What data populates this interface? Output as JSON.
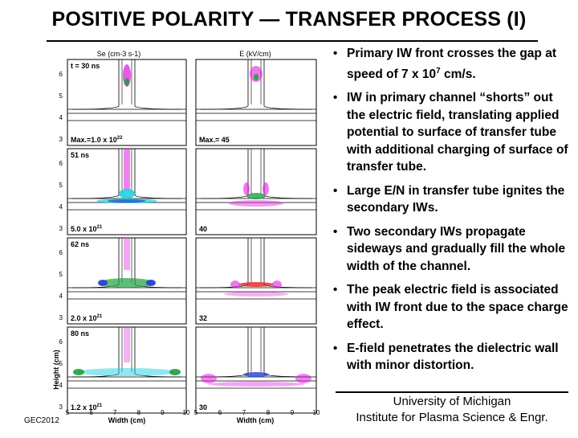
{
  "title": "POSITIVE POLARITY — TRANSFER PROCESS (I)",
  "figure": {
    "col_left_header": "Se (cm-3 s-1)",
    "col_right_header": "E (kV/cm)",
    "y_axis_label": "Height (cm)",
    "x_axis_label": "Width (cm)",
    "y_ticks": [
      "6",
      "5",
      "4",
      "3"
    ],
    "x_ticks": [
      "5",
      "6",
      "7",
      "8",
      "9",
      "10"
    ],
    "rows": [
      {
        "time": "t = 30 ns",
        "left_max": "Max.=1.0 x 10",
        "left_exp": "22",
        "right_max": "Max.= 45"
      },
      {
        "time": "51 ns",
        "left_max": "5.0 x 10",
        "left_exp": "21",
        "right_max": "40"
      },
      {
        "time": "62 ns",
        "left_max": "2.0 x 10",
        "left_exp": "21",
        "right_max": "32"
      },
      {
        "time": "80 ns",
        "left_max": "1.2 x 10",
        "left_exp": "21",
        "right_max": "30"
      }
    ]
  },
  "bullets": [
    {
      "text": "Primary IW front crosses the gap at speed of 7 x 10",
      "sup": "7",
      "tail": " cm/s."
    },
    {
      "text": "IW in primary channel “shorts” out the electric field, translating applied potential to surface of transfer tube with additional charging of surface of transfer tube.",
      "sup": "",
      "tail": ""
    },
    {
      "text": "Large E/N in transfer tube ignites the secondary IWs.",
      "sup": "",
      "tail": ""
    },
    {
      "text": "Two secondary IWs propagate sideways and gradually fill the whole width of the channel.",
      "sup": "",
      "tail": ""
    },
    {
      "text": "The peak electric field is associated with IW front due to the space charge effect.",
      "sup": "",
      "tail": ""
    },
    {
      "text": "E-field penetrates the dielectric wall with minor distortion.",
      "sup": "",
      "tail": ""
    }
  ],
  "affiliation_line1": "University of Michigan",
  "affiliation_line2": "Institute for Plasma Science & Engr.",
  "footer": "GEC2012",
  "colors": {
    "magenta": "#e020e0",
    "cyan": "#20d0e0",
    "green": "#20a040",
    "red": "#e02020",
    "blue": "#2040d0"
  }
}
